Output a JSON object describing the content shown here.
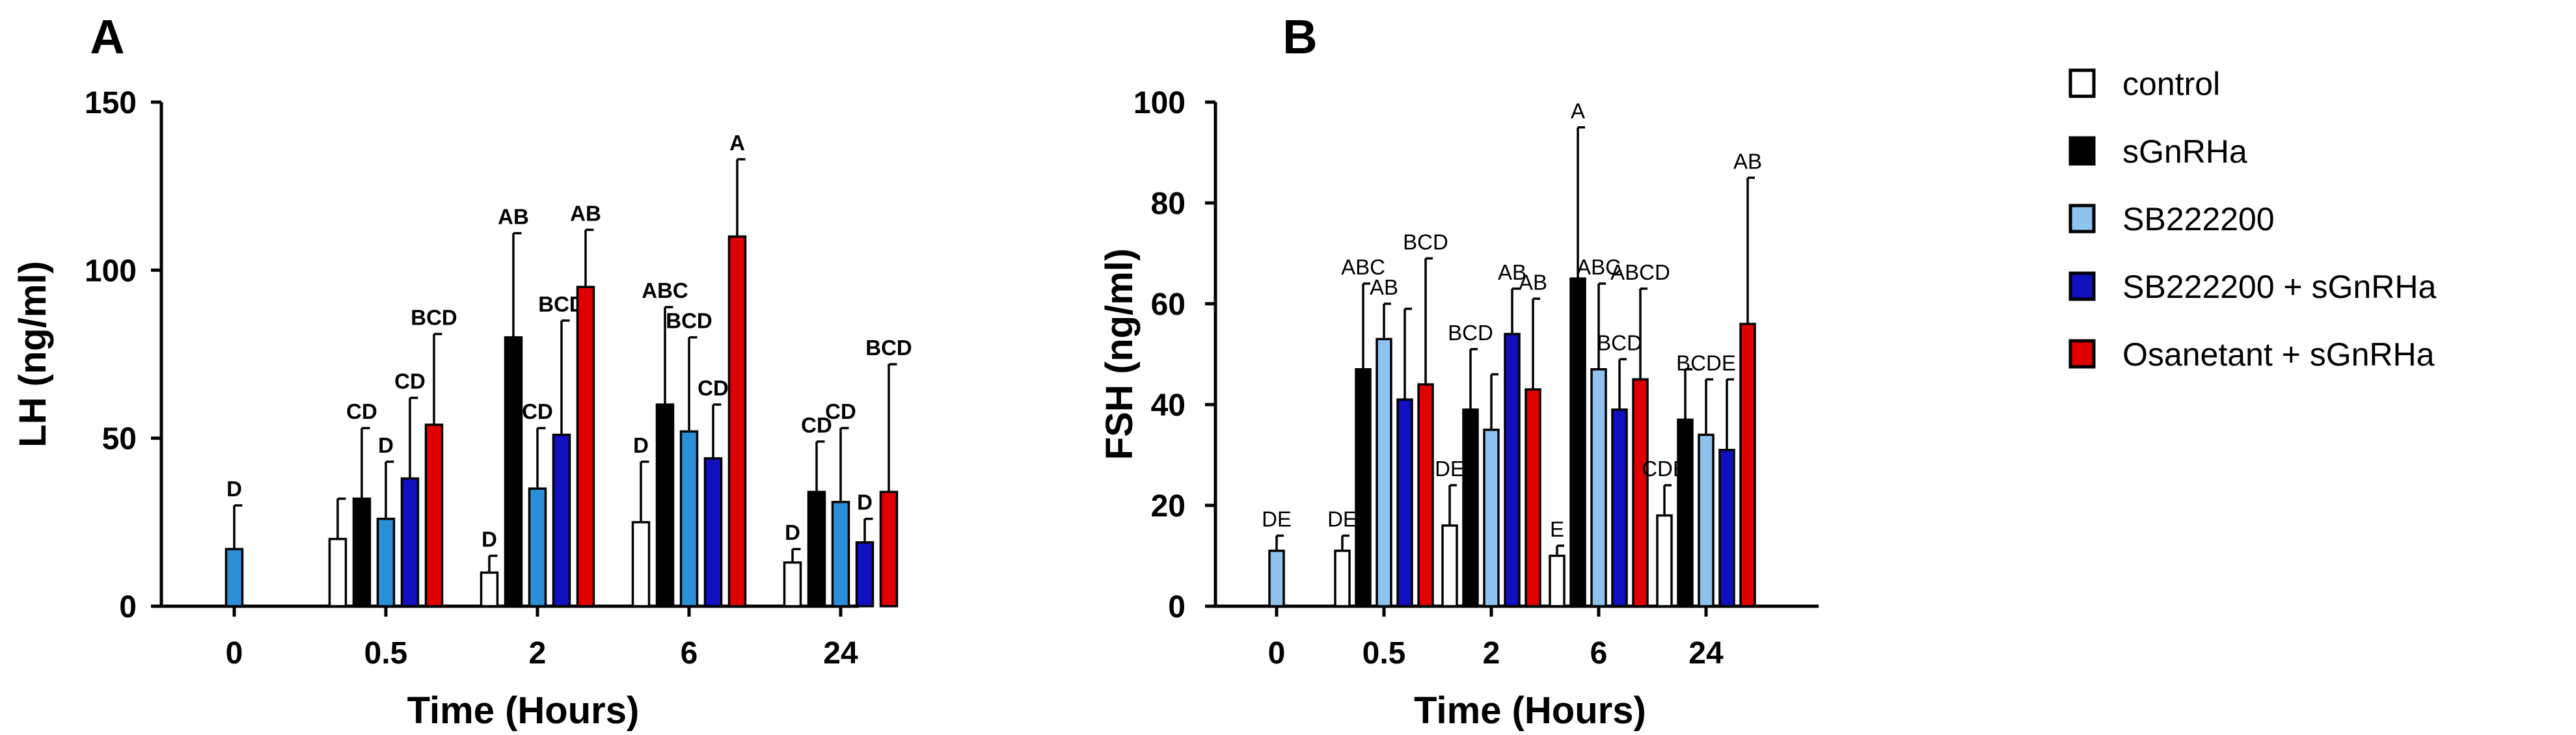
{
  "chart_data": [
    {
      "type": "bar",
      "panel": "A",
      "xlabel": "Time (Hours)",
      "ylabel": "LH (ng/ml)",
      "ylim": [
        0,
        150
      ],
      "yticks": [
        0,
        50,
        100,
        150
      ],
      "categories": [
        "0",
        "0.5",
        "2",
        "6",
        "24"
      ],
      "series": [
        {
          "name": "control",
          "color": "#ffffff",
          "values": [
            null,
            20,
            10,
            25,
            13
          ],
          "errors": [
            null,
            12,
            5,
            18,
            4
          ],
          "labels": [
            null,
            "",
            "D",
            "D",
            "D"
          ]
        },
        {
          "name": "sGnRHa",
          "color": "#000000",
          "values": [
            null,
            32,
            80,
            60,
            34
          ],
          "errors": [
            null,
            21,
            31,
            29,
            15
          ],
          "labels": [
            null,
            "CD",
            "AB",
            "ABC",
            "CD"
          ]
        },
        {
          "name": "SB222200",
          "color": "#2a8fd6",
          "values": [
            17,
            26,
            35,
            52,
            31
          ],
          "errors": [
            13,
            17,
            18,
            28,
            22
          ],
          "labels": [
            "D",
            "D",
            "CD",
            "BCD",
            "CD"
          ]
        },
        {
          "name": "SB222200 + sGnRHa",
          "color": "#1010c0",
          "values": [
            null,
            38,
            51,
            44,
            19
          ],
          "errors": [
            null,
            24,
            34,
            16,
            7
          ],
          "labels": [
            null,
            "CD",
            "BCD",
            "CD",
            "D"
          ]
        },
        {
          "name": "Osanetant + sGnRHa",
          "color": "#e00000",
          "values": [
            null,
            54,
            95,
            110,
            34
          ],
          "errors": [
            null,
            27,
            17,
            23,
            38
          ],
          "labels": [
            null,
            "BCD",
            "AB",
            "A",
            "BCD"
          ]
        }
      ]
    },
    {
      "type": "bar",
      "panel": "B",
      "xlabel": "Time (Hours)",
      "ylabel": "FSH (ng/ml)",
      "ylim": [
        0,
        100
      ],
      "yticks": [
        0,
        20,
        40,
        60,
        80,
        100
      ],
      "categories": [
        "0",
        "0.5",
        "2",
        "6",
        "24"
      ],
      "series": [
        {
          "name": "control",
          "color": "#ffffff",
          "values": [
            null,
            11,
            16,
            10,
            18
          ],
          "errors": [
            null,
            3,
            8,
            2,
            6
          ],
          "labels": [
            null,
            "DE",
            "DE",
            "E",
            "CDE"
          ]
        },
        {
          "name": "sGnRHa",
          "color": "#000000",
          "values": [
            null,
            47,
            39,
            65,
            37
          ],
          "errors": [
            null,
            17,
            12,
            30,
            10
          ],
          "labels": [
            null,
            "ABC",
            "BCD",
            "A",
            ""
          ]
        },
        {
          "name": "SB222200",
          "color": "#8ec3ef",
          "values": [
            11,
            53,
            35,
            47,
            34
          ],
          "errors": [
            3,
            7,
            11,
            17,
            11
          ],
          "labels": [
            "DE",
            "AB",
            "",
            "ABC",
            "BCDE"
          ]
        },
        {
          "name": "SB222200 + sGnRHa",
          "color": "#1010c0",
          "values": [
            null,
            41,
            54,
            39,
            31
          ],
          "errors": [
            null,
            18,
            9,
            10,
            14
          ],
          "labels": [
            null,
            "",
            "AB",
            "BCD",
            ""
          ]
        },
        {
          "name": "Osanetant + sGnRHa",
          "color": "#e00000",
          "values": [
            null,
            44,
            43,
            45,
            56
          ],
          "errors": [
            null,
            25,
            18,
            18,
            29
          ],
          "labels": [
            null,
            "BCD",
            "AB",
            "ABCD",
            "AB"
          ]
        }
      ]
    }
  ],
  "legend": [
    {
      "label": "control",
      "color": "#ffffff"
    },
    {
      "label": "sGnRHa",
      "color": "#000000"
    },
    {
      "label": "SB222200",
      "color": "#8ec3ef"
    },
    {
      "label": "SB222200 + sGnRHa",
      "color": "#1010c0"
    },
    {
      "label": "Osanetant + sGnRHa",
      "color": "#e00000"
    }
  ]
}
